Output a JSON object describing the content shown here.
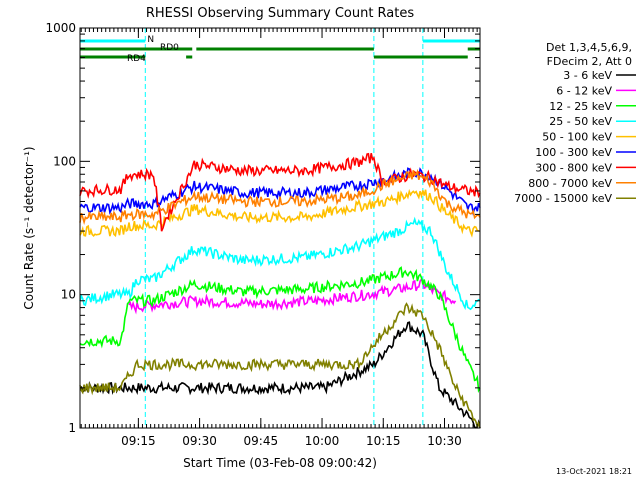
{
  "chart_data": {
    "type": "line",
    "title": "RHESSI Observing Summary Count Rates",
    "xlabel": "Start Time (03-Feb-08 09:00:42)",
    "ylabel": "Count Rate (s⁻¹ detector⁻¹)",
    "y_scale": "log",
    "ylim": [
      1,
      1000
    ],
    "y_ticks": [
      1,
      10,
      100,
      1000
    ],
    "y_tick_labels": [
      "1",
      "10",
      "100",
      "1000"
    ],
    "xlim_minutes": [
      0,
      98
    ],
    "x_ticks_minutes": [
      14.3,
      29.3,
      44.3,
      59.3,
      74.3,
      89.3
    ],
    "x_tick_labels": [
      "09:15",
      "09:30",
      "09:45",
      "10:00",
      "10:15",
      "10:30"
    ],
    "legend_header": [
      "Det 1,3,4,5,6,9,",
      "FDecim 2, Att 0"
    ],
    "series": [
      {
        "name": "3 - 6 keV",
        "color": "#000000",
        "points": [
          [
            0,
            2
          ],
          [
            20,
            2
          ],
          [
            40,
            2
          ],
          [
            60,
            2
          ],
          [
            72,
            3
          ],
          [
            80,
            6
          ],
          [
            84,
            5
          ],
          [
            88,
            2
          ],
          [
            98,
            1
          ]
        ]
      },
      {
        "name": "6 - 12 keV",
        "color": "#ff00ff",
        "points": [
          [
            12,
            8
          ],
          [
            20,
            8.5
          ],
          [
            29,
            9
          ],
          [
            45,
            8.5
          ],
          [
            58,
            9
          ],
          [
            70,
            10
          ],
          [
            78,
            11
          ],
          [
            84,
            12
          ],
          [
            88,
            10
          ],
          [
            92,
            9
          ]
        ]
      },
      {
        "name": "12 - 25 keV",
        "color": "#00ff00",
        "points": [
          [
            0,
            4.5
          ],
          [
            10,
            4.5
          ],
          [
            12,
            9
          ],
          [
            18,
            9
          ],
          [
            28,
            12
          ],
          [
            40,
            10.5
          ],
          [
            55,
            11
          ],
          [
            70,
            12.5
          ],
          [
            80,
            15
          ],
          [
            84,
            13
          ],
          [
            88,
            10
          ],
          [
            95,
            3
          ],
          [
            98,
            2
          ]
        ]
      },
      {
        "name": "25 - 50 keV",
        "color": "#00ffff",
        "points": [
          [
            0,
            9
          ],
          [
            8,
            10
          ],
          [
            12,
            10
          ],
          [
            14,
            13
          ],
          [
            18,
            13
          ],
          [
            28,
            22
          ],
          [
            40,
            18
          ],
          [
            55,
            19
          ],
          [
            68,
            23
          ],
          [
            78,
            30
          ],
          [
            82,
            34
          ],
          [
            86,
            30
          ],
          [
            90,
            15
          ],
          [
            95,
            8
          ],
          [
            98,
            9
          ]
        ]
      },
      {
        "name": "50 - 100 keV",
        "color": "#ffc000",
        "points": [
          [
            0,
            30
          ],
          [
            10,
            30
          ],
          [
            12,
            33
          ],
          [
            18,
            33
          ],
          [
            28,
            44
          ],
          [
            40,
            38
          ],
          [
            55,
            38
          ],
          [
            68,
            46
          ],
          [
            75,
            50
          ],
          [
            82,
            60
          ],
          [
            86,
            55
          ],
          [
            90,
            40
          ],
          [
            95,
            30
          ],
          [
            98,
            30
          ]
        ]
      },
      {
        "name": "100 - 300 keV",
        "color": "#0000ff",
        "points": [
          [
            0,
            45
          ],
          [
            10,
            45
          ],
          [
            12,
            48
          ],
          [
            18,
            48
          ],
          [
            28,
            65
          ],
          [
            40,
            58
          ],
          [
            55,
            58
          ],
          [
            68,
            66
          ],
          [
            75,
            73
          ],
          [
            82,
            84
          ],
          [
            86,
            78
          ],
          [
            90,
            62
          ],
          [
            95,
            45
          ],
          [
            98,
            45
          ]
        ]
      },
      {
        "name": "300 - 800 keV",
        "color": "#ff0000",
        "points": [
          [
            0,
            60
          ],
          [
            10,
            62
          ],
          [
            12,
            80
          ],
          [
            18,
            80
          ],
          [
            20,
            32
          ],
          [
            28,
            95
          ],
          [
            40,
            85
          ],
          [
            55,
            85
          ],
          [
            68,
            98
          ],
          [
            72,
            108
          ],
          [
            74,
            70
          ],
          [
            82,
            80
          ],
          [
            86,
            75
          ],
          [
            90,
            65
          ],
          [
            95,
            60
          ],
          [
            98,
            58
          ]
        ]
      },
      {
        "name": "800 - 7000 keV",
        "color": "#ff8000",
        "points": [
          [
            0,
            38
          ],
          [
            10,
            38
          ],
          [
            12,
            40
          ],
          [
            18,
            40
          ],
          [
            28,
            55
          ],
          [
            40,
            50
          ],
          [
            55,
            50
          ],
          [
            68,
            55
          ],
          [
            75,
            68
          ],
          [
            82,
            80
          ],
          [
            86,
            70
          ],
          [
            90,
            48
          ],
          [
            95,
            40
          ],
          [
            98,
            38
          ]
        ]
      },
      {
        "name": "7000 - 15000 keV",
        "color": "#808000",
        "points": [
          [
            0,
            2
          ],
          [
            10,
            2
          ],
          [
            14,
            3
          ],
          [
            20,
            3
          ],
          [
            28,
            3
          ],
          [
            40,
            3
          ],
          [
            55,
            3
          ],
          [
            68,
            3
          ],
          [
            74,
            5
          ],
          [
            80,
            8
          ],
          [
            84,
            7
          ],
          [
            88,
            4
          ],
          [
            92,
            2
          ],
          [
            98,
            1
          ]
        ]
      }
    ],
    "flag_bars": [
      {
        "label": "N",
        "color": "#00ffff",
        "row": 0,
        "segments_minutes": [
          [
            0,
            16
          ],
          [
            84,
            98
          ]
        ]
      },
      {
        "label": "RD0",
        "color": "#008000",
        "row": 1,
        "segments_minutes": [
          [
            0,
            27.5
          ],
          [
            28.5,
            72
          ],
          [
            95,
            98
          ]
        ]
      },
      {
        "label": "RD4",
        "color": "#008000",
        "row": 2,
        "segments_minutes": [
          [
            0,
            16
          ],
          [
            26,
            27.5
          ],
          [
            72,
            95
          ]
        ]
      }
    ],
    "vertical_markers_minutes": [
      16,
      72,
      84,
      98
    ],
    "footer_date": "13-Oct-2021 18:21"
  }
}
